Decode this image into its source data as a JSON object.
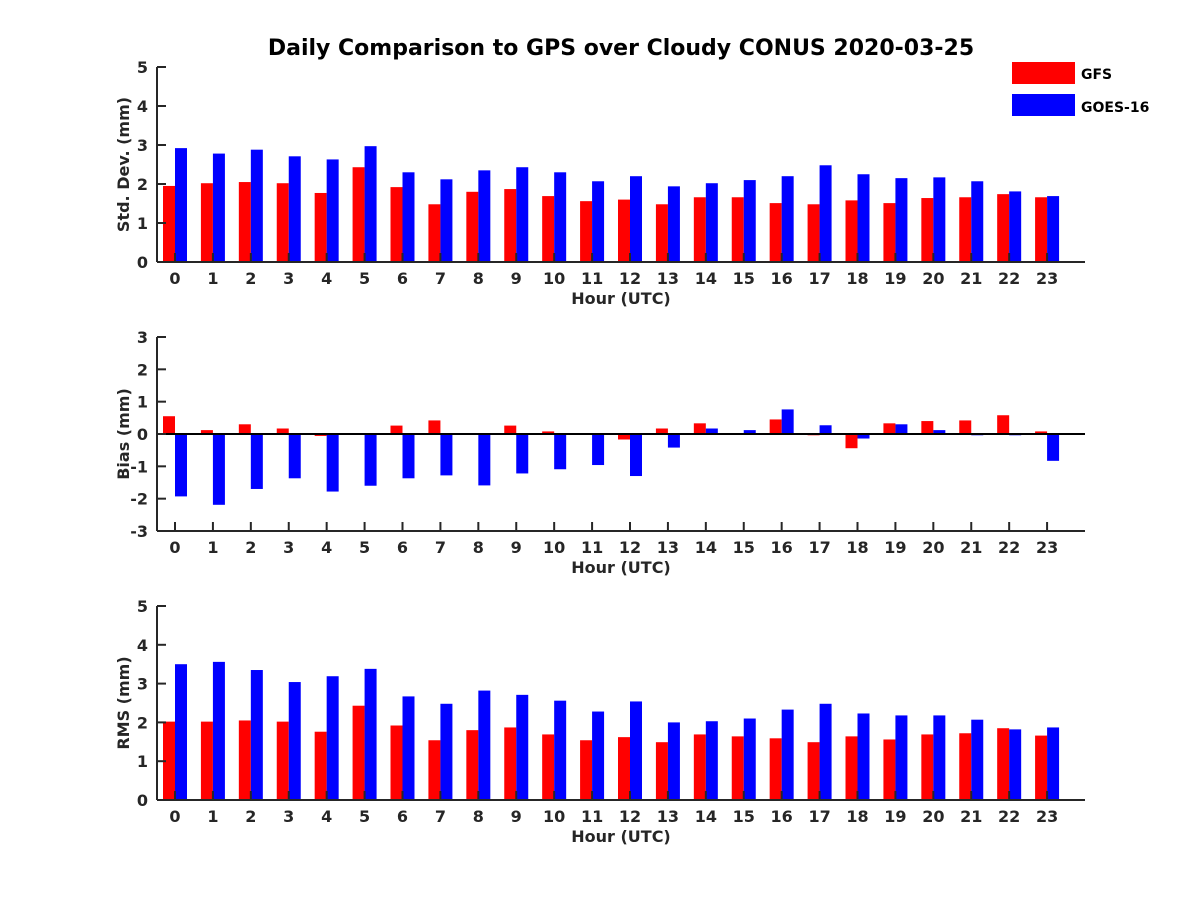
{
  "title": "Daily Comparison to GPS over Cloudy CONUS 2020-03-25",
  "legend": [
    {
      "name": "GFS",
      "color": "#ff0000"
    },
    {
      "name": "GOES-16",
      "color": "#0000ff"
    }
  ],
  "chart_data": [
    {
      "type": "bar",
      "xlabel": "Hour (UTC)",
      "ylabel": "Std. Dev. (mm)",
      "ylim": [
        0,
        5
      ],
      "yticks": [
        "0",
        "1",
        "2",
        "3",
        "4",
        "5"
      ],
      "categories": [
        "0",
        "1",
        "2",
        "3",
        "4",
        "5",
        "6",
        "7",
        "8",
        "9",
        "10",
        "11",
        "12",
        "13",
        "14",
        "15",
        "16",
        "17",
        "18",
        "19",
        "20",
        "21",
        "22",
        "23"
      ],
      "series": [
        {
          "name": "GFS",
          "color": "#ff0000",
          "values": [
            1.95,
            2.02,
            2.05,
            2.02,
            1.77,
            2.43,
            1.92,
            1.48,
            1.8,
            1.87,
            1.69,
            1.56,
            1.6,
            1.48,
            1.66,
            1.66,
            1.51,
            1.48,
            1.58,
            1.51,
            1.64,
            1.66,
            1.74,
            1.66
          ]
        },
        {
          "name": "GOES-16",
          "color": "#0000ff",
          "values": [
            2.92,
            2.78,
            2.88,
            2.71,
            2.63,
            2.97,
            2.3,
            2.12,
            2.35,
            2.43,
            2.3,
            2.07,
            2.2,
            1.94,
            2.02,
            2.1,
            2.2,
            2.48,
            2.25,
            2.15,
            2.17,
            2.07,
            1.81,
            1.69
          ]
        }
      ]
    },
    {
      "type": "bar",
      "xlabel": "Hour (UTC)",
      "ylabel": "Bias (mm)",
      "ylim": [
        -3,
        3
      ],
      "yticks": [
        "-3",
        "-2",
        "-1",
        "0",
        "1",
        "2",
        "3"
      ],
      "categories": [
        "0",
        "1",
        "2",
        "3",
        "4",
        "5",
        "6",
        "7",
        "8",
        "9",
        "10",
        "11",
        "12",
        "13",
        "14",
        "15",
        "16",
        "17",
        "18",
        "19",
        "20",
        "21",
        "22",
        "23"
      ],
      "series": [
        {
          "name": "GFS",
          "color": "#ff0000",
          "values": [
            0.55,
            0.12,
            0.3,
            0.17,
            -0.06,
            0.0,
            0.26,
            0.42,
            0.0,
            0.26,
            0.08,
            0.0,
            -0.17,
            0.17,
            0.33,
            0.0,
            0.45,
            -0.04,
            -0.44,
            0.33,
            0.4,
            0.42,
            0.58,
            0.08
          ]
        },
        {
          "name": "GOES-16",
          "color": "#0000ff",
          "values": [
            -1.93,
            -2.19,
            -1.7,
            -1.37,
            -1.78,
            -1.6,
            -1.37,
            -1.28,
            -1.59,
            -1.22,
            -1.09,
            -0.96,
            -1.3,
            -0.42,
            0.17,
            0.12,
            0.76,
            0.27,
            -0.14,
            0.3,
            0.12,
            -0.04,
            -0.04,
            -0.83
          ]
        }
      ]
    },
    {
      "type": "bar",
      "xlabel": "Hour (UTC)",
      "ylabel": "RMS (mm)",
      "ylim": [
        0,
        5
      ],
      "yticks": [
        "0",
        "1",
        "2",
        "3",
        "4",
        "5"
      ],
      "categories": [
        "0",
        "1",
        "2",
        "3",
        "4",
        "5",
        "6",
        "7",
        "8",
        "9",
        "10",
        "11",
        "12",
        "13",
        "14",
        "15",
        "16",
        "17",
        "18",
        "19",
        "20",
        "21",
        "22",
        "23"
      ],
      "series": [
        {
          "name": "GFS",
          "color": "#ff0000",
          "values": [
            2.02,
            2.02,
            2.05,
            2.02,
            1.76,
            2.43,
            1.92,
            1.54,
            1.8,
            1.87,
            1.69,
            1.54,
            1.62,
            1.49,
            1.69,
            1.64,
            1.59,
            1.49,
            1.64,
            1.56,
            1.69,
            1.72,
            1.85,
            1.66
          ]
        },
        {
          "name": "GOES-16",
          "color": "#0000ff",
          "values": [
            3.5,
            3.56,
            3.35,
            3.04,
            3.19,
            3.38,
            2.67,
            2.48,
            2.82,
            2.71,
            2.56,
            2.28,
            2.54,
            2.0,
            2.03,
            2.1,
            2.33,
            2.48,
            2.23,
            2.18,
            2.18,
            2.07,
            1.82,
            1.87
          ]
        }
      ]
    }
  ]
}
